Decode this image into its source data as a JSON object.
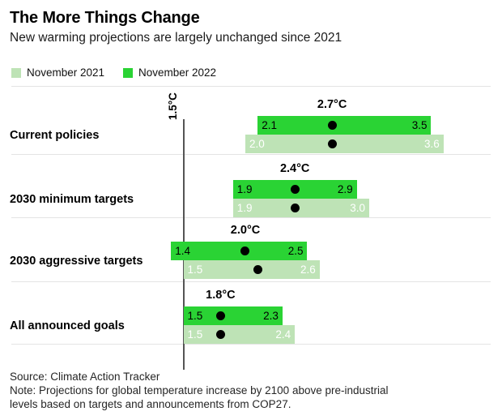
{
  "header": {
    "title": "The More Things Change",
    "subtitle": "New warming projections are largely unchanged since 2021"
  },
  "legend": [
    {
      "label": "November 2021",
      "color": "#bee3b6"
    },
    {
      "label": "November 2022",
      "color": "#2ad334"
    }
  ],
  "colors": {
    "green_2022": "#2ad334",
    "green_2021": "#bee3b6",
    "dot": "#000000",
    "gridline": "#e4e4e4",
    "reference_line": "#555555"
  },
  "chart_data": {
    "type": "bar",
    "subtype": "horizontal-range-bars-with-midpoint-dots",
    "unit": "°C",
    "xlim": [
      1.0,
      3.9
    ],
    "grid": "row-separators",
    "legend_position": "top-left",
    "series_names": [
      "November 2021",
      "November 2022"
    ],
    "reference_line": {
      "value": 1.5,
      "label": "1.5°C"
    },
    "rows": [
      {
        "category": "Current policies",
        "estimate": "2.7°C",
        "series": {
          "nov2022": {
            "low": 2.1,
            "high": 3.5,
            "dot": 2.7
          },
          "nov2021": {
            "low": 2.0,
            "high": 3.6,
            "dot": 2.7
          }
        }
      },
      {
        "category": "2030 minimum targets",
        "estimate": "2.4°C",
        "series": {
          "nov2022": {
            "low": 1.9,
            "high": 2.9,
            "dot": 2.4
          },
          "nov2021": {
            "low": 1.9,
            "high": 3.0,
            "dot": 2.4
          }
        }
      },
      {
        "category": "2030 aggressive targets",
        "estimate": "2.0°C",
        "series": {
          "nov2022": {
            "low": 1.4,
            "high": 2.5,
            "dot": 2.0
          },
          "nov2021": {
            "low": 1.5,
            "high": 2.6,
            "dot": 2.1
          }
        }
      },
      {
        "category": "All announced goals",
        "estimate": "1.8°C",
        "series": {
          "nov2022": {
            "low": 1.5,
            "high": 2.3,
            "dot": 1.8
          },
          "nov2021": {
            "low": 1.5,
            "high": 2.4,
            "dot": 1.8
          }
        }
      }
    ]
  },
  "footer": {
    "source": "Source: Climate Action Tracker",
    "note_line1": "Note: Projections for global temperature increase by 2100 above pre-industrial",
    "note_line2": "levels based on targets and announcements from COP27."
  }
}
